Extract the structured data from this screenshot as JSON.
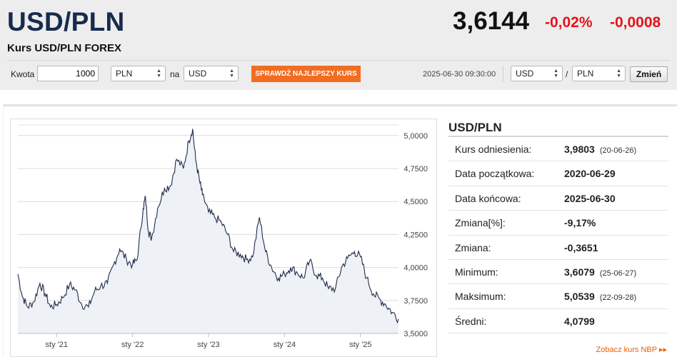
{
  "header": {
    "pair": "USD/PLN",
    "subtitle": "Kurs USD/PLN FOREX",
    "rate": "3,6144",
    "change_pct": "-0,02%",
    "change_abs": "-0,0008"
  },
  "converter": {
    "amount_label": "Kwota",
    "amount_value": "1000",
    "from_currency": "PLN",
    "to_label": "na",
    "to_currency": "USD",
    "best_rate_button": "SPRAWDŹ NAJLEPSZY KURS",
    "datetime": "2025-06-30 09:30:00",
    "pair_base": "USD",
    "pair_slash": "/",
    "pair_quote": "PLN",
    "change_button": "Zmień"
  },
  "stats": {
    "title": "USD/PLN",
    "rows": [
      {
        "label": "Kurs odniesienia:",
        "value": "3,9803",
        "date": "(20-06-26)"
      },
      {
        "label": "Data początkowa:",
        "value": "2020-06-29",
        "date": ""
      },
      {
        "label": "Data końcowa:",
        "value": "2025-06-30",
        "date": ""
      },
      {
        "label": "Zmiana[%]:",
        "value": "-9,17%",
        "date": ""
      },
      {
        "label": "Zmiana:",
        "value": "-0,3651",
        "date": ""
      },
      {
        "label": "Minimum:",
        "value": "3,6079",
        "date": "(25-06-27)"
      },
      {
        "label": "Maksimum:",
        "value": "5,0539",
        "date": "(22-09-28)"
      },
      {
        "label": "Średni:",
        "value": "4,0799",
        "date": ""
      }
    ],
    "nbp_link": "Zobacz kurs NBP ▸▸"
  },
  "colors": {
    "accent_orange": "#f26c21",
    "negative": "#e2141c",
    "title_navy": "#172b4d",
    "line": "#1f2d4a",
    "area": "#eef1f5"
  },
  "chart_data": {
    "type": "area",
    "y_ticks": [
      "5,0000",
      "4,7500",
      "4,5000",
      "4,2500",
      "4,0000",
      "3,7500",
      "3,5000"
    ],
    "y_tick_values": [
      5.0,
      4.75,
      4.5,
      4.25,
      4.0,
      3.75,
      3.5
    ],
    "x_ticks": [
      "sty '21",
      "sty '22",
      "sty '23",
      "sty '24",
      "sty '25"
    ],
    "x_tick_values": [
      2021.0,
      2022.0,
      2023.0,
      2024.0,
      2025.0
    ],
    "xlim": [
      2020.49,
      2025.5
    ],
    "ylim": [
      3.5,
      5.08
    ],
    "grid": true,
    "x": [
      2020.49,
      2020.55,
      2020.62,
      2020.7,
      2020.78,
      2020.85,
      2020.92,
      2021.0,
      2021.08,
      2021.17,
      2021.25,
      2021.33,
      2021.42,
      2021.5,
      2021.58,
      2021.67,
      2021.75,
      2021.83,
      2021.92,
      2022.0,
      2022.06,
      2022.14,
      2022.17,
      2022.21,
      2022.25,
      2022.33,
      2022.42,
      2022.5,
      2022.58,
      2022.67,
      2022.74,
      2022.79,
      2022.83,
      2022.88,
      2022.92,
      2023.0,
      2023.08,
      2023.17,
      2023.25,
      2023.33,
      2023.42,
      2023.5,
      2023.58,
      2023.67,
      2023.75,
      2023.83,
      2023.92,
      2024.0,
      2024.08,
      2024.17,
      2024.25,
      2024.33,
      2024.42,
      2024.5,
      2024.58,
      2024.67,
      2024.75,
      2024.83,
      2024.92,
      2025.0,
      2025.08,
      2025.17,
      2025.25,
      2025.33,
      2025.42,
      2025.5
    ],
    "y": [
      3.95,
      3.78,
      3.7,
      3.74,
      3.88,
      3.8,
      3.7,
      3.72,
      3.77,
      3.87,
      3.83,
      3.72,
      3.7,
      3.82,
      3.86,
      3.88,
      4.02,
      4.14,
      4.06,
      4.02,
      4.06,
      4.45,
      4.53,
      4.27,
      4.22,
      4.45,
      4.6,
      4.62,
      4.82,
      4.75,
      4.96,
      5.05,
      4.82,
      4.66,
      4.55,
      4.42,
      4.38,
      4.34,
      4.25,
      4.12,
      4.1,
      4.06,
      4.08,
      4.38,
      4.12,
      4.0,
      3.92,
      3.95,
      4.0,
      3.96,
      3.92,
      4.05,
      3.94,
      3.92,
      3.84,
      3.84,
      4.0,
      4.07,
      4.12,
      4.08,
      3.92,
      3.8,
      3.76,
      3.72,
      3.66,
      3.61
    ]
  }
}
